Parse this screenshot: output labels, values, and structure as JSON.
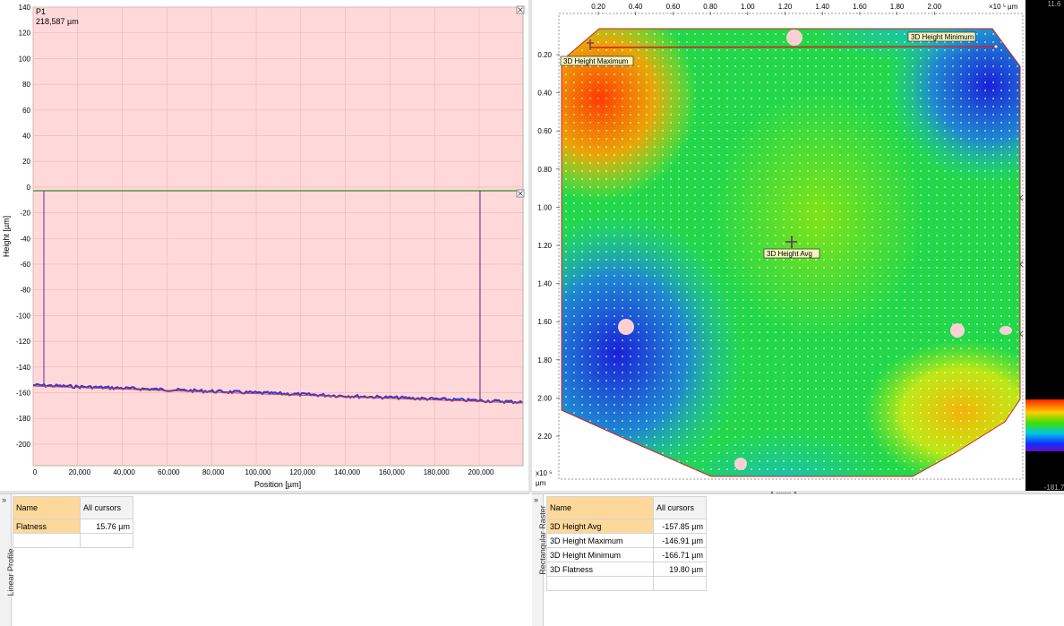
{
  "linear_profile": {
    "probe_label": "P1",
    "probe_value": "218,587 µm",
    "x_label": "Position [µm]",
    "y_label": "Height [µm]",
    "x_ticks": [
      "0",
      "20,000",
      "40,000",
      "60,000",
      "80,000",
      "100,000",
      "120,000",
      "140,000",
      "160,000",
      "180,000",
      "200,000"
    ],
    "y_ticks": [
      "140",
      "120",
      "100",
      "80",
      "60",
      "40",
      "20",
      "0",
      "-20",
      "-40",
      "-60",
      "-80",
      "-100",
      "-120",
      "-140",
      "-160",
      "-180",
      "-200"
    ],
    "colors": {
      "plot_bg": "#ffd9d9",
      "grid": "#f2b8b8",
      "zero_line": "#2e8b2e",
      "cursor": "#6a2a9a",
      "profile": "#3a3acc",
      "fit": "#d23a3a"
    }
  },
  "raster": {
    "x_ticks": [
      "0.20",
      "0.40",
      "0.60",
      "0.80",
      "1.00",
      "1.20",
      "1.40",
      "1.60",
      "1.80",
      "2.00"
    ],
    "x_unit": "µm",
    "x_multiplier": "×10 ⁵",
    "y_ticks": [
      "0.20",
      "0.40",
      "0.60",
      "0.80",
      "1.00",
      "1.20",
      "1.40",
      "1.60",
      "1.80",
      "2.00",
      "2.20"
    ],
    "y_multiplier": "x10 ⁵",
    "y_unit": "µm",
    "labels": {
      "max": "3D Height Maximum",
      "min": "3D Height Minimum",
      "avg": "3D Height Avg"
    },
    "scale_top": "11.6",
    "scale_bottom": "-181.7"
  },
  "linear_table": {
    "tab_label": "Linear Profile",
    "col_name": "Name",
    "col_cursors": "All cursors",
    "rows": [
      {
        "name": "Flatness",
        "value": "15.76 µm"
      }
    ]
  },
  "raster_table": {
    "tab_label": "Rectangular Raster",
    "col_name": "Name",
    "col_cursors": "All cursors",
    "rows": [
      {
        "name": "3D Height Avg",
        "value": "-157.85 µm"
      },
      {
        "name": "3D Height Maximum",
        "value": "-146.91 µm"
      },
      {
        "name": "3D Height Minimum",
        "value": "-166.71 µm"
      },
      {
        "name": "3D Flatness",
        "value": "19.80 µm"
      }
    ]
  }
}
